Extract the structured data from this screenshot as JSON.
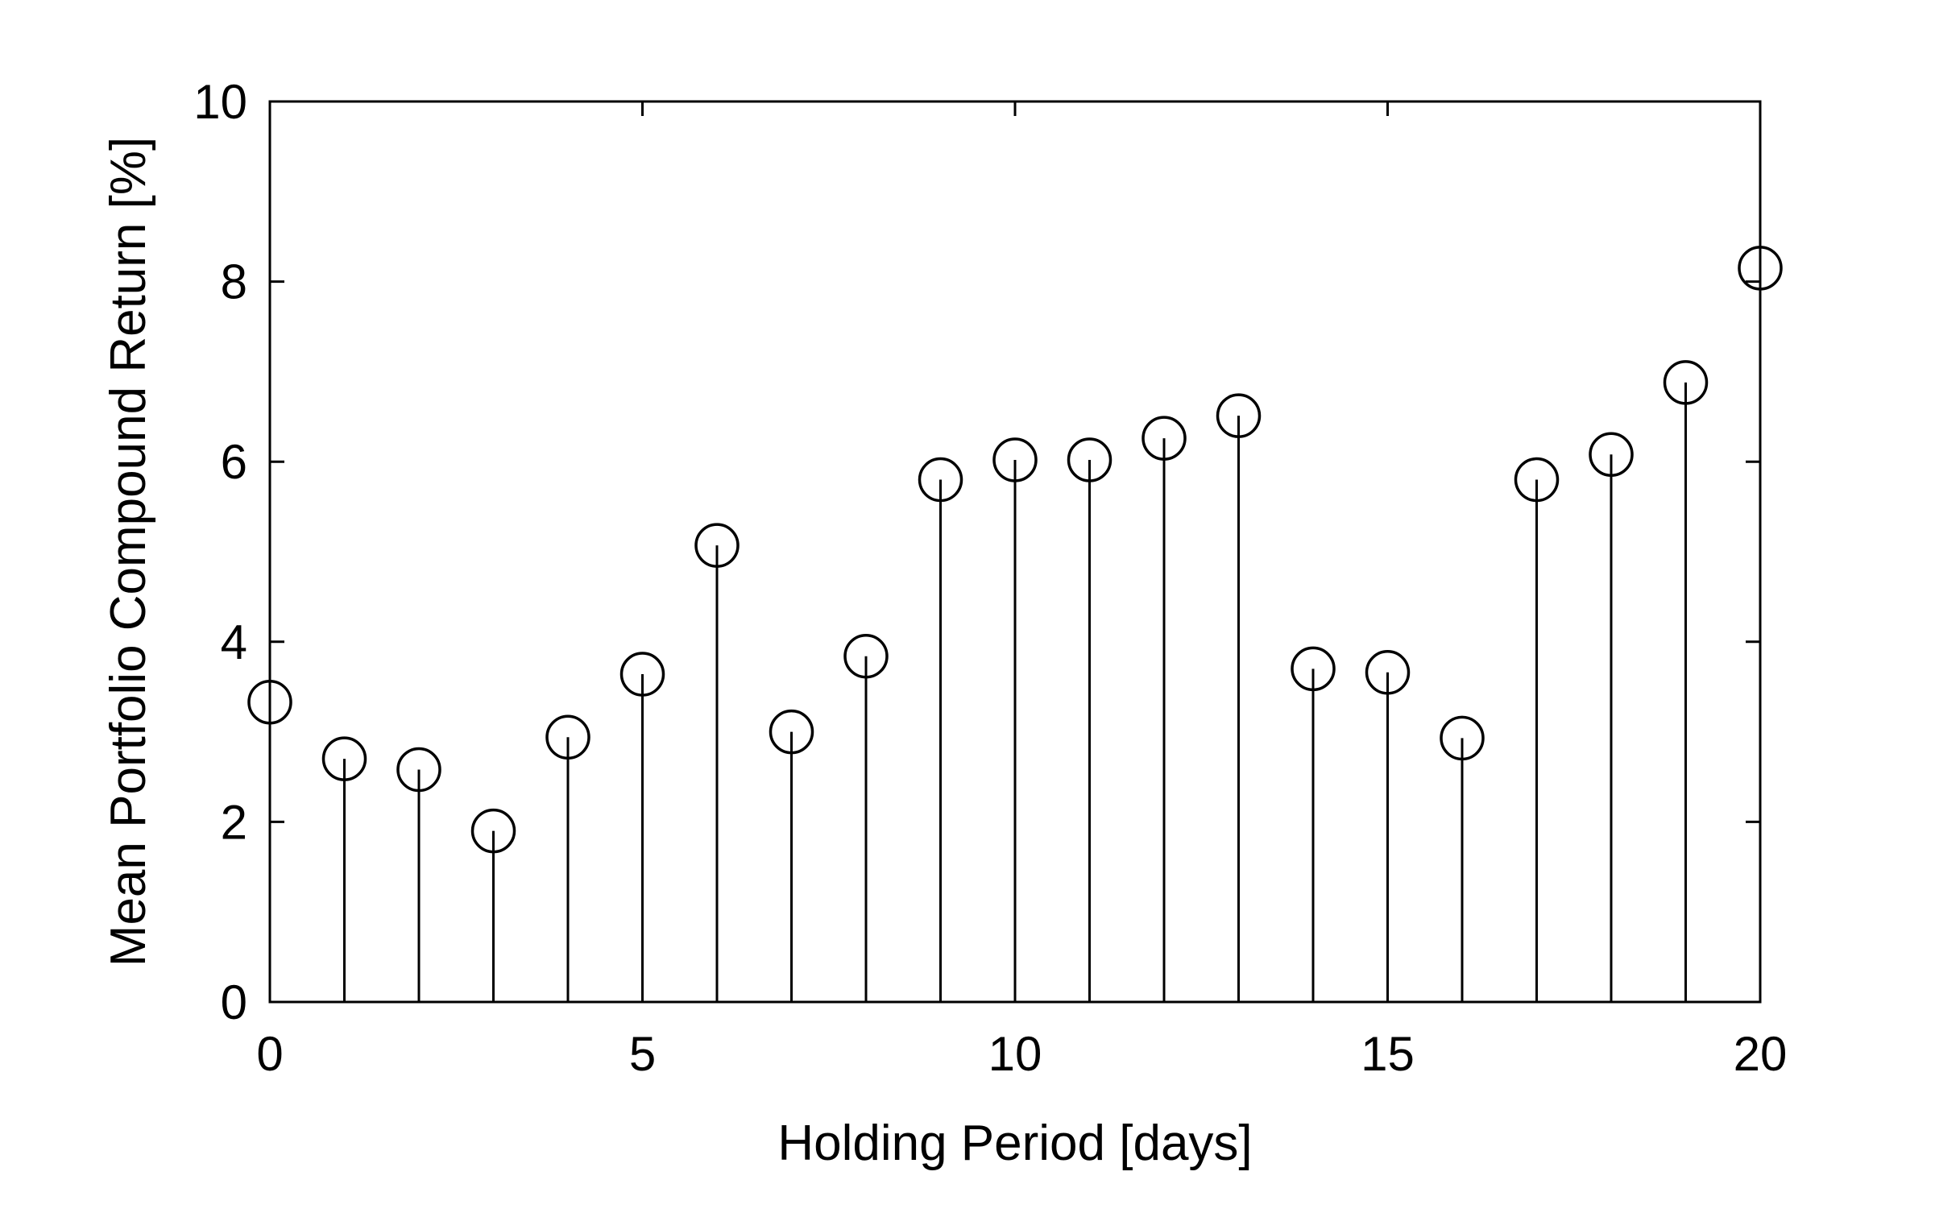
{
  "chart_data": {
    "type": "scatter",
    "style": "stem",
    "xlabel": "Holding Period [days]",
    "ylabel": "Mean Portfolio Compound Return [%]",
    "xlim": [
      0,
      20
    ],
    "ylim": [
      0,
      10
    ],
    "xticks": [
      0,
      5,
      10,
      15,
      20
    ],
    "yticks": [
      0,
      2,
      4,
      6,
      8,
      10
    ],
    "xtick_labels": [
      "0",
      "5",
      "10",
      "15",
      "20"
    ],
    "ytick_labels": [
      "0",
      "2",
      "4",
      "6",
      "8",
      "10"
    ],
    "grid": false,
    "marker": "open-circle",
    "color": "#000000",
    "series": [
      {
        "x": [
          0,
          1,
          2,
          3,
          4,
          5,
          6,
          7,
          8,
          9,
          10,
          11,
          12,
          13,
          14,
          15,
          16,
          17,
          18,
          19,
          20
        ],
        "values": [
          3.33,
          2.7,
          2.58,
          1.9,
          2.94,
          3.64,
          5.07,
          3.0,
          3.84,
          5.8,
          6.02,
          6.02,
          6.26,
          6.51,
          3.7,
          3.66,
          2.93,
          5.8,
          6.08,
          6.88,
          8.15
        ]
      }
    ]
  }
}
